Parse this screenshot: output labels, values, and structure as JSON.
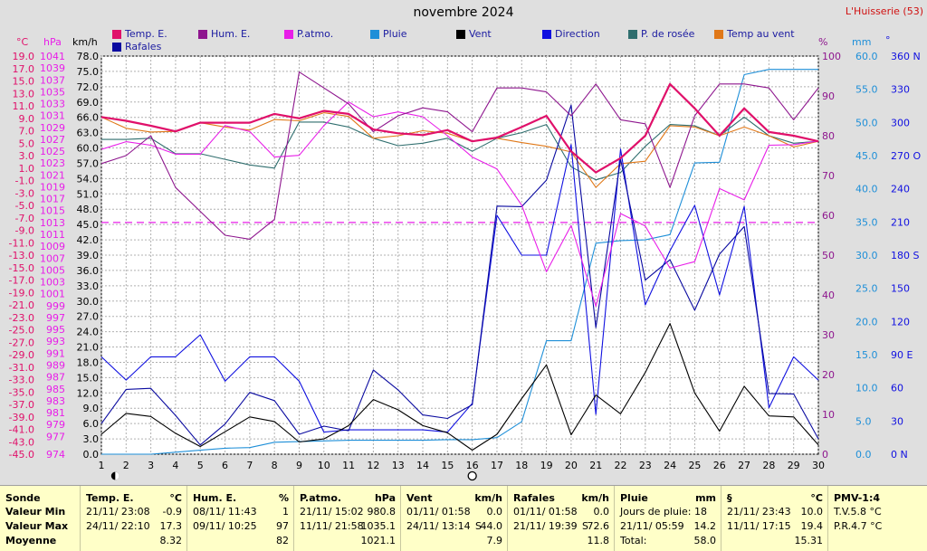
{
  "header": {
    "title": "novembre 2024",
    "site": "L'Huisserie (53)"
  },
  "legend": [
    {
      "label": "Temp. E.",
      "color": "#e0106a"
    },
    {
      "label": "Hum. E.",
      "color": "#8e168e"
    },
    {
      "label": "P.atmo.",
      "color": "#e81ee8"
    },
    {
      "label": "Pluie",
      "color": "#1e8fd8"
    },
    {
      "label": "Vent",
      "color": "#000000"
    },
    {
      "label": "Direction",
      "color": "#1010e0"
    },
    {
      "label": "P. de rosée",
      "color": "#2f6e6e"
    },
    {
      "label": "Temp au vent",
      "color": "#e07818"
    },
    {
      "label": "Rafales",
      "color": "#0a0aa0"
    }
  ],
  "axis_units": {
    "temp": "°C",
    "pressure": "hPa",
    "speed": "km/h",
    "humidity": "%",
    "rain": "mm",
    "direction": "°"
  },
  "chart_data": {
    "type": "line",
    "x": [
      1,
      2,
      3,
      4,
      5,
      6,
      7,
      8,
      9,
      10,
      11,
      12,
      13,
      14,
      15,
      16,
      17,
      18,
      19,
      20,
      21,
      22,
      23,
      24,
      25,
      26,
      27,
      28,
      29,
      30
    ],
    "axes": {
      "x": {
        "range": [
          1,
          30
        ],
        "ticks": [
          1,
          2,
          3,
          4,
          5,
          6,
          7,
          8,
          9,
          10,
          11,
          12,
          13,
          14,
          15,
          16,
          17,
          18,
          19,
          20,
          21,
          22,
          23,
          24,
          25,
          26,
          27,
          28,
          29,
          30
        ]
      },
      "temp": {
        "unit": "°C",
        "range": [
          -45,
          19
        ],
        "ticks": [
          "19.0",
          "17.0",
          "15.0",
          "13.0",
          "11.0",
          "9.0",
          "7.0",
          "5.0",
          "3.0",
          "1.0",
          "-1.0",
          "-3.0",
          "-5.0",
          "-7.0",
          "-9.0",
          "-11.0",
          "-13.0",
          "-15.0",
          "-17.0",
          "-19.0",
          "-21.0",
          "-23.0",
          "-25.0",
          "-27.0",
          "-29.0",
          "-31.0",
          "-33.0",
          "-35.0",
          "-37.0",
          "-39.0",
          "-41.0",
          "-43.0",
          "-45.0"
        ]
      },
      "pressure": {
        "unit": "hPa",
        "range": [
          974,
          1041
        ],
        "ticks": [
          "1041",
          "1039",
          "1037",
          "1035",
          "1033",
          "1031",
          "1029",
          "1027",
          "1025",
          "1023",
          "1021",
          "1019",
          "1017",
          "1015",
          "1013",
          "1011",
          "1009",
          "1007",
          "1005",
          "1003",
          "1001",
          "999",
          "997",
          "995",
          "993",
          "991",
          "989",
          "987",
          "985",
          "983",
          "981",
          "979",
          "977",
          "974"
        ]
      },
      "speed": {
        "unit": "km/h",
        "range": [
          0,
          78
        ],
        "ticks": [
          "78.0",
          "75.0",
          "72.0",
          "69.0",
          "66.0",
          "63.0",
          "60.0",
          "57.0",
          "54.0",
          "51.0",
          "48.0",
          "45.0",
          "42.0",
          "39.0",
          "36.0",
          "33.0",
          "30.0",
          "27.0",
          "24.0",
          "21.0",
          "18.0",
          "15.0",
          "12.0",
          "9.0",
          "6.0",
          "3.0",
          "0.0"
        ]
      },
      "humidity": {
        "unit": "%",
        "range": [
          0,
          100
        ],
        "ticks": [
          "100",
          "90",
          "80",
          "70",
          "60",
          "50",
          "40",
          "30",
          "20",
          "10",
          "0"
        ]
      },
      "rain": {
        "unit": "mm",
        "range": [
          0,
          60
        ],
        "ticks": [
          "60.0",
          "55.0",
          "50.0",
          "45.0",
          "40.0",
          "35.0",
          "30.0",
          "25.0",
          "20.0",
          "15.0",
          "10.0",
          "5.0",
          "0.0"
        ]
      },
      "direction": {
        "unit": "°",
        "range": [
          0,
          360
        ],
        "ticks": [
          "360 N",
          "330",
          "300",
          "270 O",
          "240",
          "210",
          "180 S",
          "150",
          "120",
          "90 E",
          "60",
          "30",
          "0 N"
        ]
      }
    },
    "dashed_reference": {
      "axis": "pressure",
      "value": 1013,
      "color": "#e81ee8"
    },
    "moon_markers": [
      {
        "x": 2,
        "phase": "new"
      },
      {
        "x": 16,
        "phase": "full"
      }
    ],
    "grid": true,
    "series": [
      {
        "name": "Temp. E.",
        "axis": "temp",
        "color": "#e0106a",
        "values": [
          9.2,
          8.6,
          7.8,
          6.9,
          8.3,
          8.3,
          8.3,
          9.7,
          9.0,
          10.2,
          9.7,
          7.2,
          6.6,
          6.3,
          7.1,
          5.3,
          5.9,
          7.6,
          9.4,
          3.7,
          0.3,
          2.6,
          6.2,
          14.5,
          10.6,
          6.2,
          10.6,
          6.8,
          6.2,
          5.3
        ]
      },
      {
        "name": "Hum. E.",
        "axis": "humidity",
        "color": "#8e168e",
        "values": [
          73,
          75,
          80,
          67,
          61,
          55,
          54,
          59,
          96,
          92,
          88,
          81,
          85,
          87,
          86,
          81,
          92,
          92,
          91,
          85,
          93,
          84,
          83,
          67,
          85,
          93,
          93,
          92,
          84,
          92
        ]
      },
      {
        "name": "P.atmo.",
        "axis": "pressure",
        "color": "#e81ee8",
        "values": [
          1025.3,
          1026.6,
          1026.0,
          1024.5,
          1024.5,
          1029.3,
          1028.3,
          1024.0,
          1024.3,
          1029.3,
          1033.3,
          1030.8,
          1031.6,
          1030.8,
          1027.6,
          1024.0,
          1022.0,
          1015.9,
          1004.7,
          1012.5,
          998.9,
          1014.5,
          1012.4,
          1005.3,
          1006.4,
          1018.7,
          1016.8,
          1026.0,
          1026.1,
          1026.7
        ]
      },
      {
        "name": "Pluie",
        "axis": "rain",
        "color": "#1e8fd8",
        "values": [
          0.0,
          0.0,
          0.0,
          0.3,
          0.6,
          0.9,
          1.0,
          1.8,
          1.9,
          2.0,
          2.1,
          2.1,
          2.1,
          2.1,
          2.2,
          2.2,
          2.5,
          4.9,
          17.1,
          17.1,
          31.8,
          32.2,
          32.3,
          33.1,
          43.9,
          44.0,
          57.2,
          58.0,
          58.0,
          58.0
        ]
      },
      {
        "name": "Vent",
        "axis": "speed",
        "color": "#000000",
        "values": [
          3.9,
          8.0,
          7.4,
          4.1,
          1.5,
          4.4,
          7.3,
          6.4,
          2.4,
          3.0,
          5.6,
          10.7,
          8.7,
          5.6,
          4.2,
          0.8,
          3.9,
          10.9,
          17.5,
          3.8,
          11.6,
          7.9,
          16.0,
          25.6,
          12.0,
          4.5,
          13.3,
          7.5,
          7.3,
          1.8
        ]
      },
      {
        "name": "Direction",
        "axis": "direction",
        "color": "#1010e0",
        "values": [
          88,
          67,
          88,
          88,
          108,
          66,
          88,
          88,
          66,
          20,
          22,
          22,
          22,
          22,
          20,
          46,
          216,
          180,
          180,
          280,
          36,
          276,
          135,
          184,
          225,
          144,
          224,
          42,
          88,
          67
        ]
      },
      {
        "name": "P. de rosée",
        "axis": "temp",
        "color": "#2f6e6e",
        "values": [
          5.6,
          5.6,
          5.8,
          3.3,
          3.3,
          2.4,
          1.5,
          1.0,
          8.4,
          8.4,
          7.6,
          5.8,
          4.6,
          5.0,
          5.8,
          3.7,
          5.8,
          6.7,
          8.0,
          1.2,
          -0.9,
          0.3,
          4.5,
          8.0,
          7.8,
          6.2,
          9.2,
          6.2,
          5.0,
          5.3
        ]
      },
      {
        "name": "Temp au vent",
        "axis": "temp",
        "color": "#e07818",
        "values": [
          9.2,
          7.4,
          6.8,
          6.9,
          8.3,
          7.6,
          7.1,
          8.8,
          8.6,
          9.9,
          9.3,
          5.8,
          6.2,
          7.0,
          6.6,
          5.3,
          5.8,
          5.1,
          4.5,
          3.6,
          -2.1,
          1.7,
          2.1,
          7.8,
          7.6,
          6.2,
          7.6,
          6.2,
          4.4,
          5.3
        ]
      },
      {
        "name": "Rafales",
        "axis": "speed",
        "color": "#0a0aa0",
        "values": [
          6.0,
          12.7,
          12.9,
          7.6,
          1.8,
          5.9,
          12.1,
          10.5,
          3.9,
          5.5,
          4.6,
          16.5,
          12.6,
          7.7,
          7.0,
          9.7,
          48.6,
          48.5,
          53.7,
          68.4,
          24.8,
          57.8,
          34.1,
          38.1,
          28.2,
          39.2,
          44.6,
          11.9,
          11.8,
          3.0
        ]
      }
    ]
  },
  "stats": {
    "sonde": {
      "header": "Sonde",
      "rows": [
        "Valeur Min",
        "Valeur Max",
        "Moyenne"
      ]
    },
    "temp": {
      "header": "Temp. E.",
      "unit": "°C",
      "min_date": "21/11/ 23:08",
      "min_val": "-0.9",
      "max_date": "24/11/ 22:10",
      "max_val": "17.3",
      "mean": "8.32"
    },
    "hum": {
      "header": "Hum. E.",
      "unit": "%",
      "min_date": "08/11/ 11:43",
      "min_val": "1",
      "max_date": "09/11/ 10:25",
      "max_val": "97",
      "mean": "82"
    },
    "patmo": {
      "header": "P.atmo.",
      "unit": "hPa",
      "min_date": "21/11/ 15:02",
      "min_val": "980.8",
      "max_date": "11/11/ 21:58",
      "max_val": "1035.1",
      "mean": "1021.1"
    },
    "vent": {
      "header": "Vent",
      "unit": "km/h",
      "min_date": "01/11/ 01:58",
      "min_val": "0.0",
      "max_date": "24/11/ 13:14",
      "max_dir": "S",
      "max_val": "44.0",
      "mean": "7.9"
    },
    "rafales": {
      "header": "Rafales",
      "unit": "km/h",
      "min_date": "01/11/ 01:58",
      "min_val": "0.0",
      "max_date": "21/11/ 19:39",
      "max_dir": "S",
      "max_val": "72.6",
      "mean": "11.8"
    },
    "pluie": {
      "header": "Pluie",
      "unit": "mm",
      "days_label": "Jours de pluie: 18",
      "max_date": "21/11/ 05:59",
      "max_val": "14.2",
      "total_label": "Total:",
      "total_val": "58.0"
    },
    "dew": {
      "header": "§",
      "unit": "°C",
      "min_date": "21/11/ 23:43",
      "min_val": "10.0",
      "max_date": "11/11/ 17:15",
      "max_val": "19.4",
      "mean": "15.31"
    },
    "pmv": {
      "header": "PMV-1:4",
      "line1": "T.V.5.8 °C",
      "line2": "P.R.4.7 °C"
    }
  }
}
